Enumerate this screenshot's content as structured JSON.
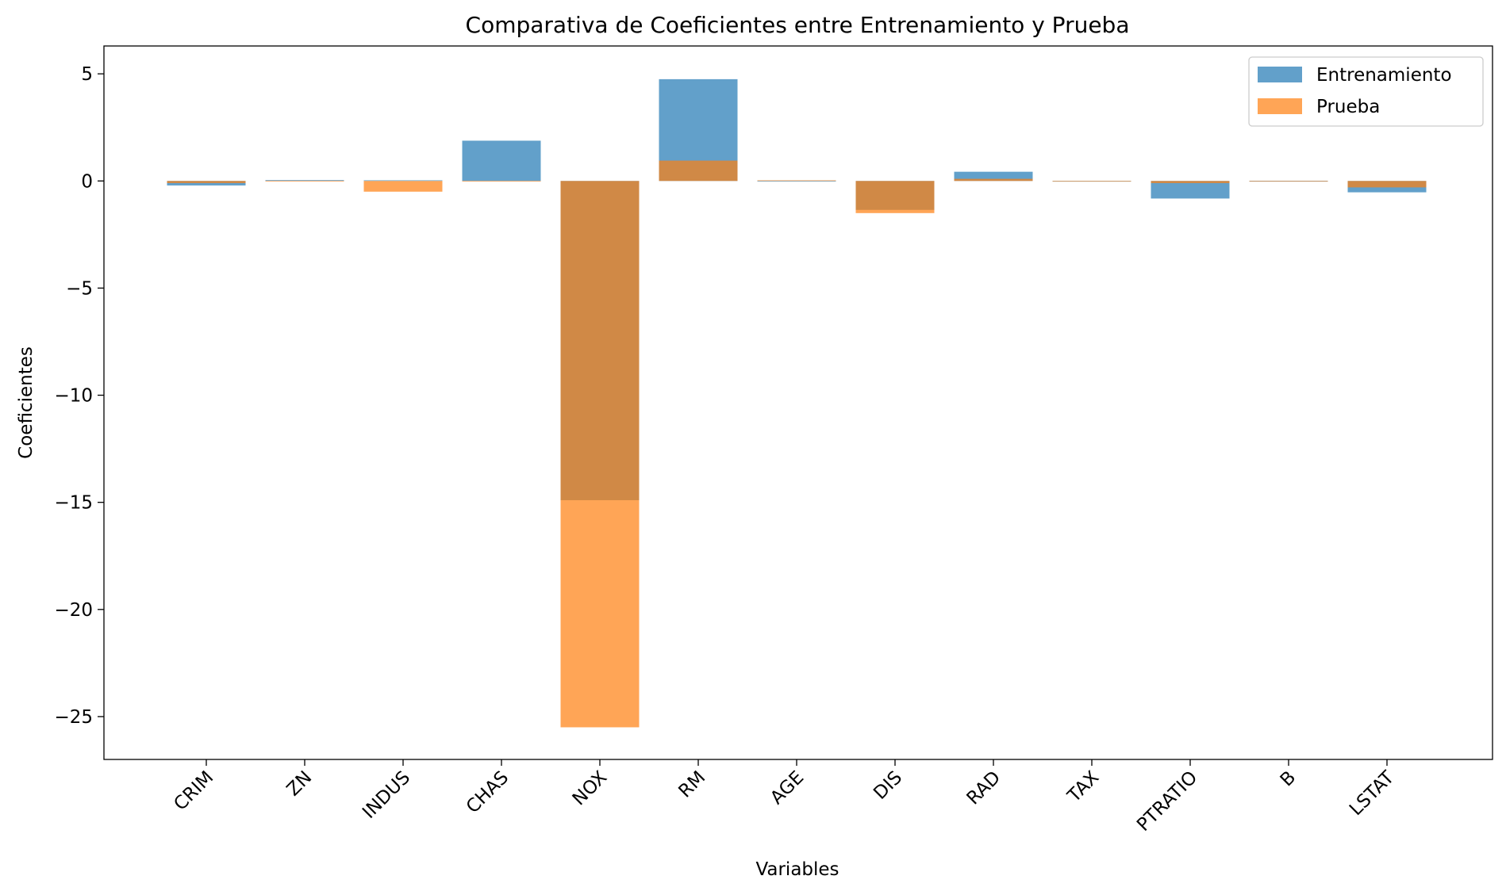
{
  "chart_data": {
    "type": "bar",
    "title": "Comparativa de Coeficientes entre Entrenamiento y Prueba",
    "xlabel": "Variables",
    "ylabel": "Coeficientes",
    "categories": [
      "CRIM",
      "ZN",
      "INDUS",
      "CHAS",
      "NOX",
      "RM",
      "AGE",
      "DIS",
      "RAD",
      "TAX",
      "PTRATIO",
      "B",
      "LSTAT"
    ],
    "series": [
      {
        "name": "Entrenamiento",
        "color": "#1f77b4",
        "opacity": 0.7,
        "values": [
          -0.21,
          0.04,
          0.03,
          1.88,
          -14.9,
          4.75,
          -0.01,
          -1.35,
          0.43,
          -0.03,
          -0.82,
          0.01,
          -0.53
        ]
      },
      {
        "name": "Prueba",
        "color": "#ff7f0e",
        "opacity": 0.7,
        "values": [
          -0.1,
          0.01,
          -0.5,
          0.0,
          -25.5,
          0.95,
          0.03,
          -1.5,
          0.1,
          -0.01,
          -0.1,
          0.0,
          -0.3
        ]
      }
    ],
    "yticks": [
      5,
      0,
      -5,
      -10,
      -15,
      -20,
      -25
    ],
    "ytick_labels": [
      "5",
      "0",
      "−5",
      "−10",
      "−15",
      "−20",
      "−25"
    ],
    "ylim": [
      -27.0,
      6.3
    ],
    "legend_position": "top-right",
    "grid": false
  }
}
